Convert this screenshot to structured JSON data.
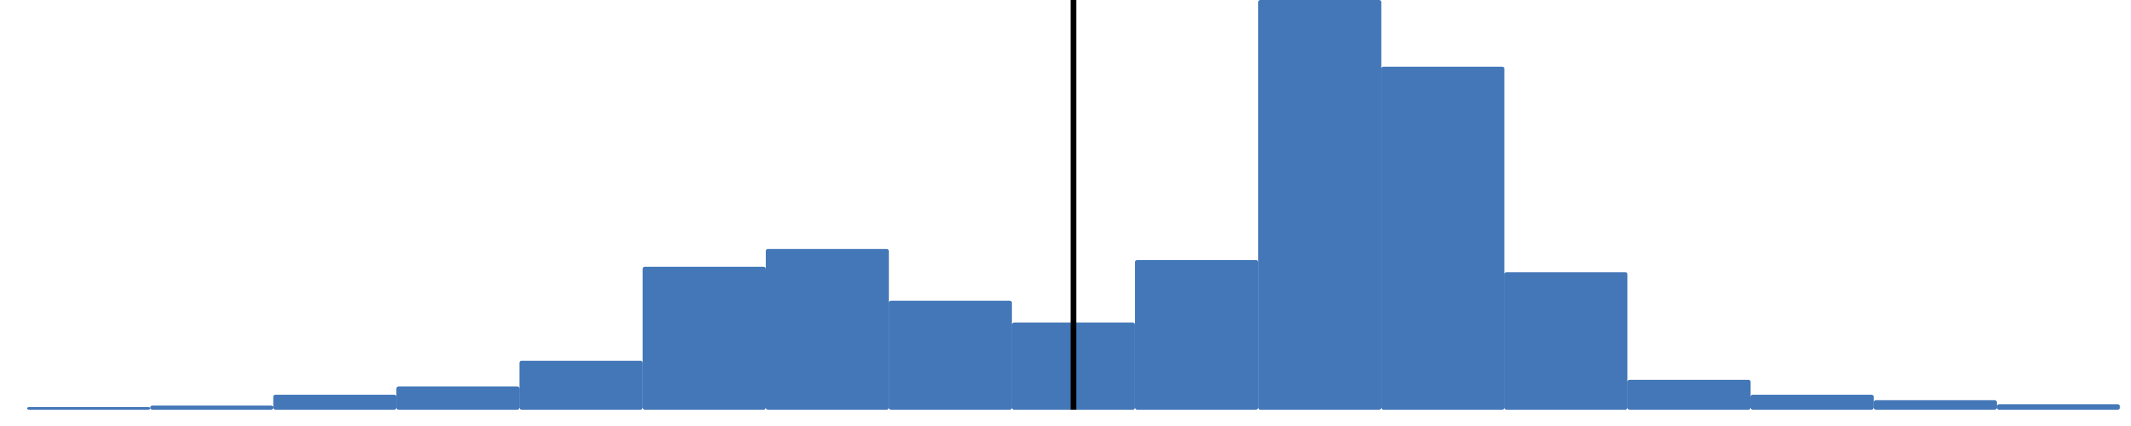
{
  "chart_data": {
    "type": "histogram",
    "bins": [
      0,
      1,
      2,
      3,
      4,
      5,
      6,
      7,
      8,
      9,
      10,
      11,
      12,
      13,
      14,
      15,
      16,
      17
    ],
    "values": [
      2,
      3,
      11,
      17,
      36,
      105,
      118,
      80,
      64,
      110,
      301,
      252,
      101,
      22,
      11,
      7,
      4
    ],
    "color": "#4377b8",
    "xlim": [
      -0.22,
      17.09
    ],
    "ylim": [
      0,
      301
    ],
    "vline": {
      "x": 8.5,
      "color": "#000000"
    }
  }
}
